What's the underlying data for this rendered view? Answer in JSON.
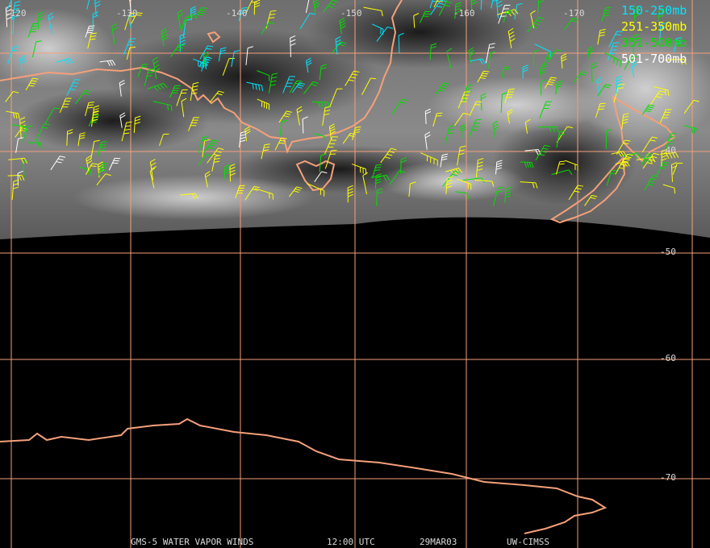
{
  "lon_labels": [
    "-120",
    "-130",
    "-140",
    "-150",
    "-160",
    "-170"
  ],
  "lat_labels": [
    "-40",
    "-50",
    "-60",
    "-70"
  ],
  "legend": [
    {
      "text": "150-250mb",
      "color": "#00e5ff"
    },
    {
      "text": "251-350mb",
      "color": "#ffff00"
    },
    {
      "text": "351-500mb",
      "color": "#00e000"
    },
    {
      "text": "501-700mb",
      "color": "#ffffff"
    }
  ],
  "footer": {
    "product": "GMS-5 WATER VAPOR WINDS",
    "time": "12:00 UTC",
    "date": "29MAR03",
    "source": "UW-CIMSS"
  },
  "colors": {
    "grid": "#f4a07a",
    "coast": "#f4a07a",
    "label": "#d9d9d9"
  }
}
